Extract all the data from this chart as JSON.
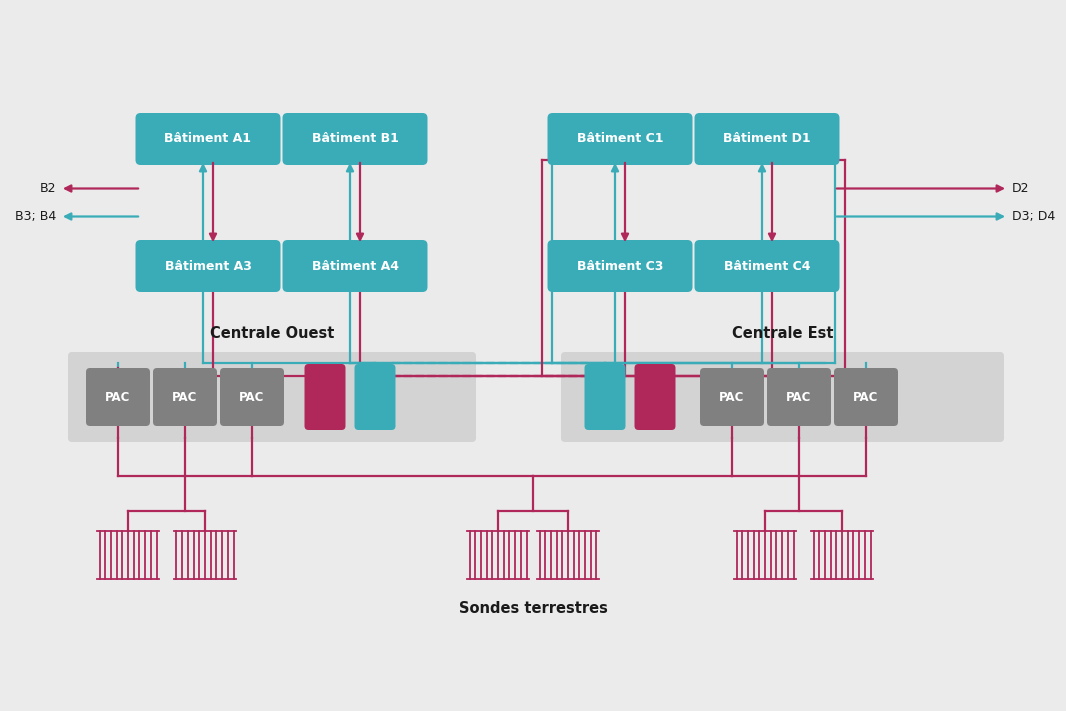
{
  "bg_color": "#ebebeb",
  "teal": "#3aacb8",
  "crimson": "#b0275a",
  "pac_gray": "#808080",
  "light_gray_bg": "#d3d3d3",
  "white": "#ffffff",
  "black": "#1a1a1a",
  "centrale_ouest": "Centrale Ouest",
  "centrale_est": "Centrale Est",
  "sondes": "Sondes terrestres",
  "lw": 1.6
}
